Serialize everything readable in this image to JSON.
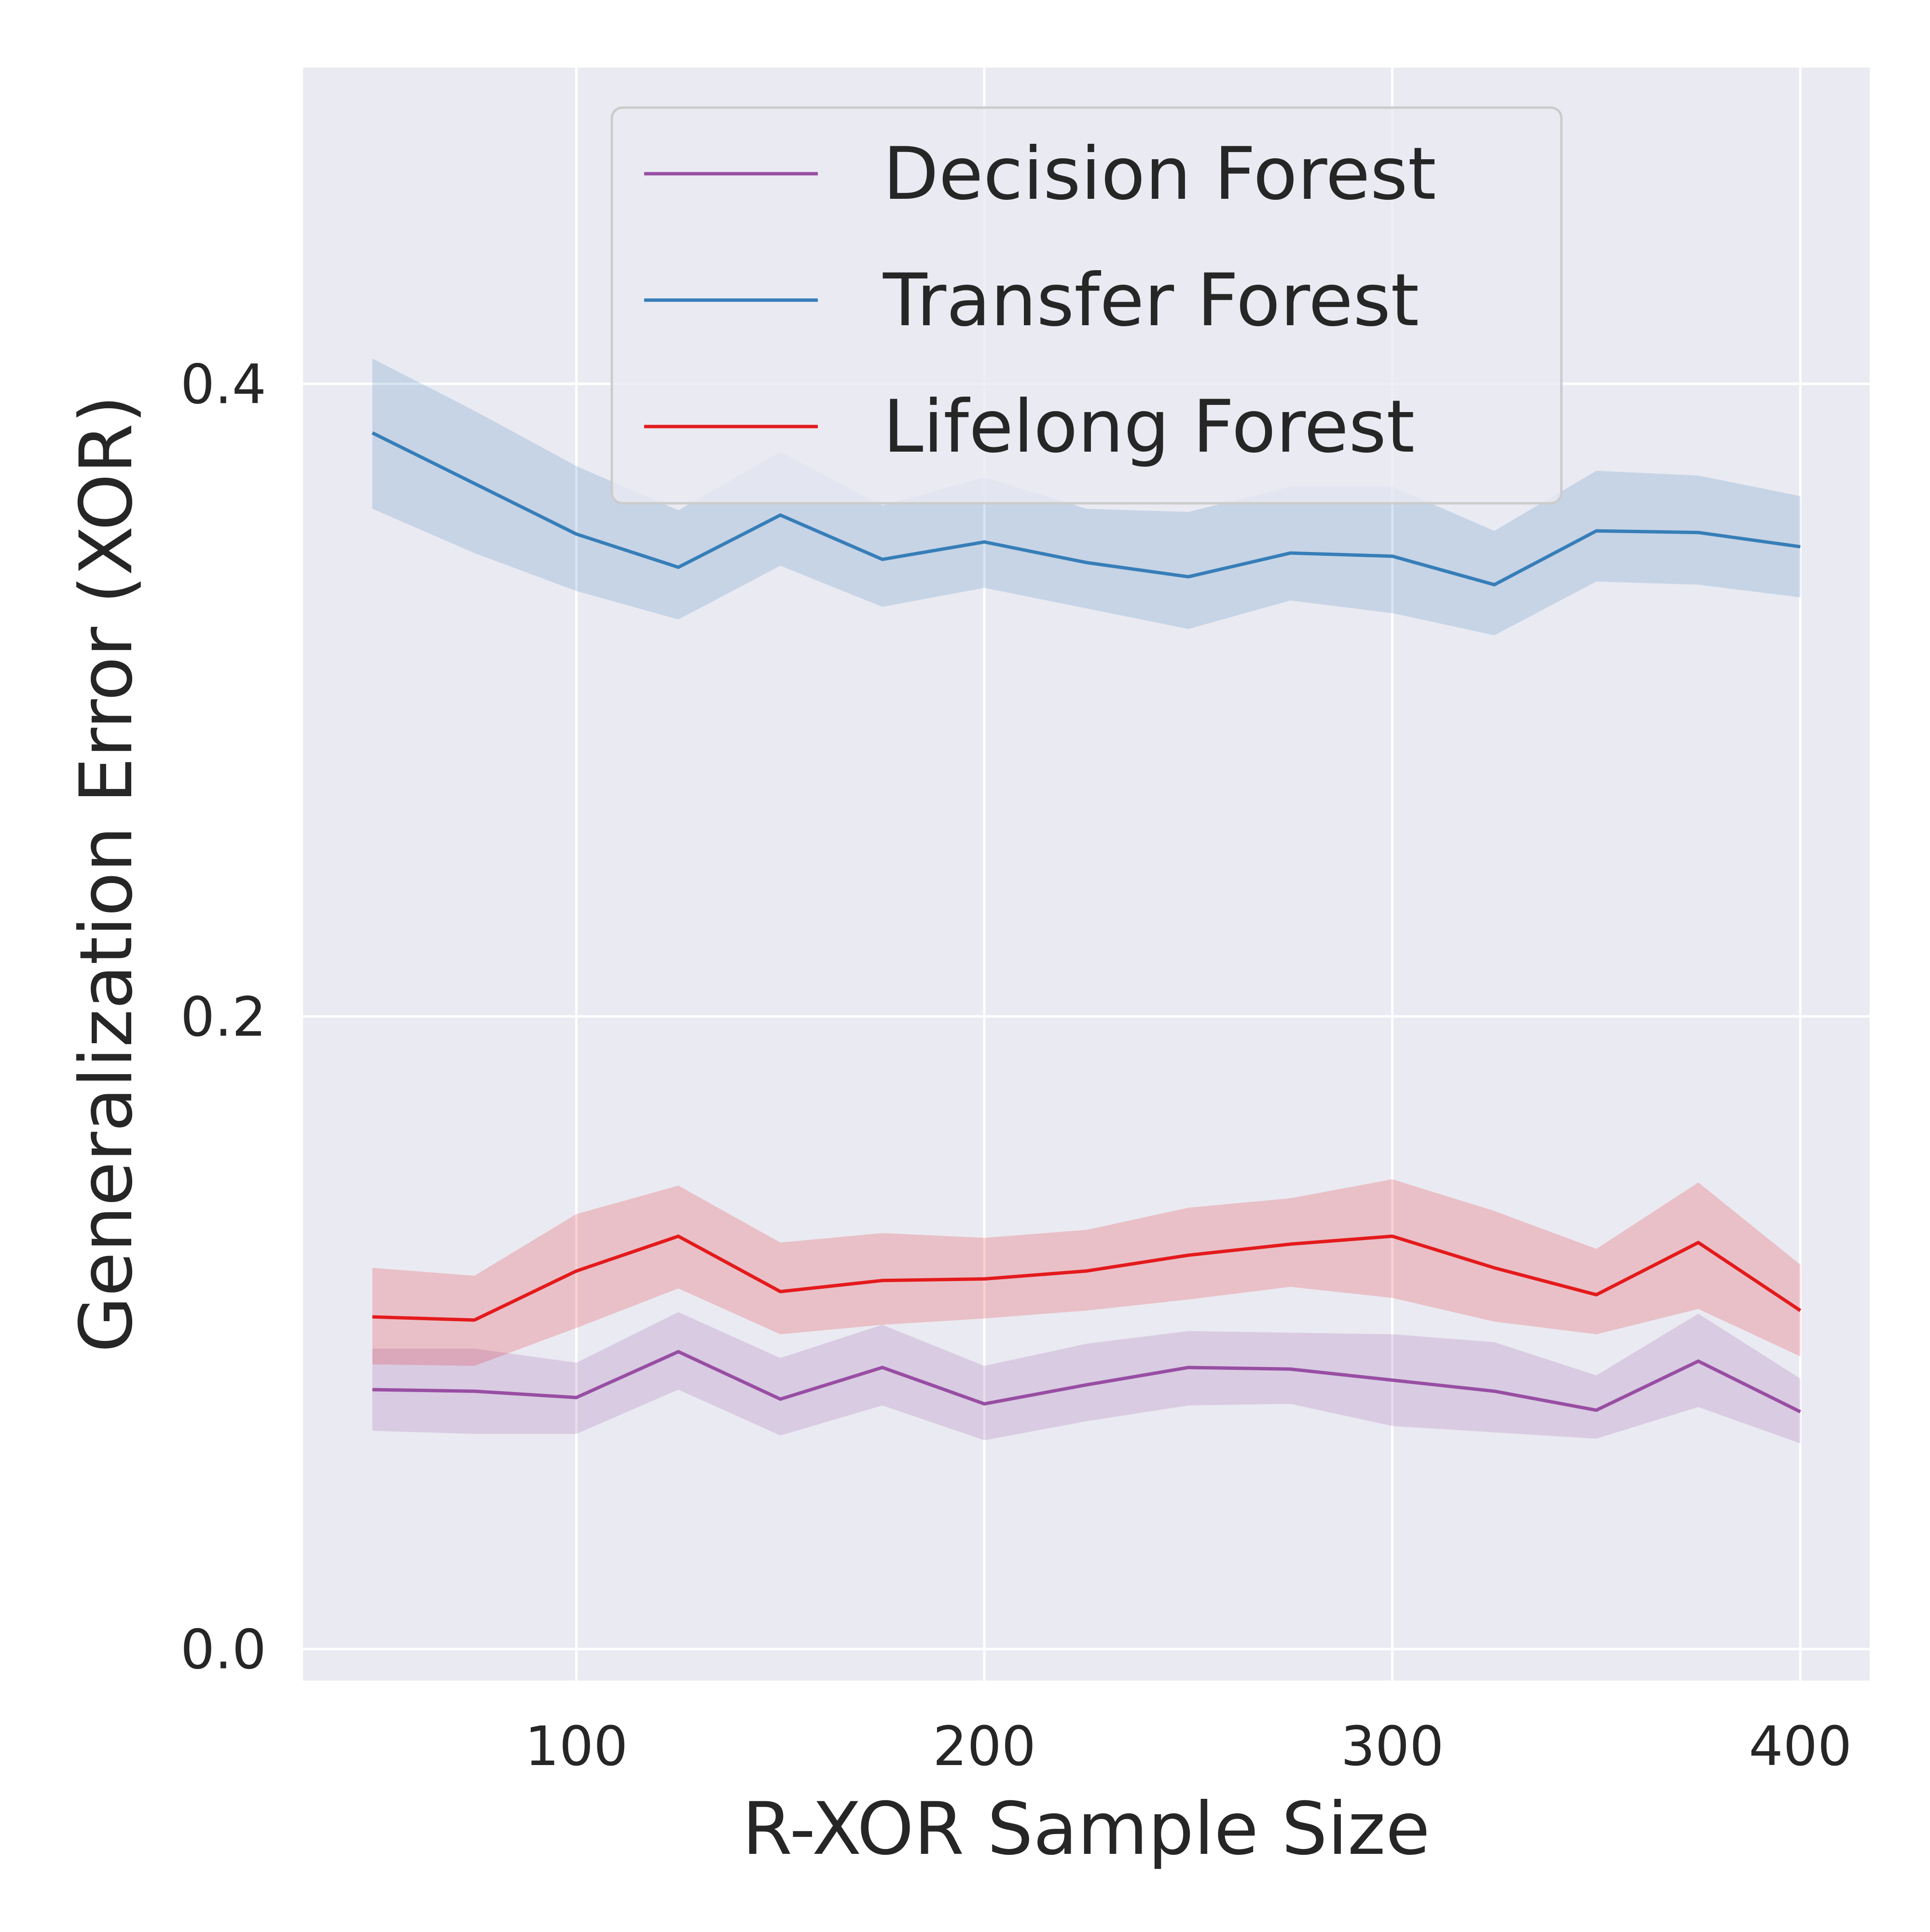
{
  "chart_data": {
    "type": "line",
    "title": "",
    "xlabel": "R-XOR Sample Size",
    "ylabel": "Generalization Error (XOR)",
    "xlim": [
      33,
      417
    ],
    "ylim": [
      -0.01,
      0.5
    ],
    "xticks": [
      100,
      200,
      300,
      400
    ],
    "yticks": [
      0.0,
      0.2,
      0.4
    ],
    "xtick_labels": [
      "100",
      "200",
      "300",
      "400"
    ],
    "ytick_labels": [
      "0.0",
      "0.2",
      "0.4"
    ],
    "grid": true,
    "legend_position": "top-center",
    "background_color": "#eaeaf2",
    "x": [
      50,
      75,
      100,
      125,
      150,
      175,
      200,
      225,
      250,
      275,
      300,
      325,
      350,
      375,
      400
    ],
    "series": [
      {
        "name": "Decision Forest",
        "color": "#984ea3",
        "values": [
          0.082,
          0.0815,
          0.0795,
          0.094,
          0.079,
          0.089,
          0.0775,
          0.0835,
          0.089,
          0.0885,
          0.085,
          0.0815,
          0.0755,
          0.091,
          0.075
        ],
        "lower": [
          0.069,
          0.068,
          0.068,
          0.082,
          0.0675,
          0.077,
          0.066,
          0.072,
          0.077,
          0.0775,
          0.0705,
          0.0685,
          0.0665,
          0.0765,
          0.065
        ],
        "upper": [
          0.095,
          0.095,
          0.0905,
          0.1065,
          0.092,
          0.1025,
          0.0895,
          0.0965,
          0.1005,
          0.1,
          0.0995,
          0.097,
          0.0865,
          0.106,
          0.0855
        ]
      },
      {
        "name": "Transfer Forest",
        "color": "#377eb8",
        "values": [
          0.3845,
          0.3685,
          0.3525,
          0.342,
          0.3585,
          0.3445,
          0.35,
          0.3435,
          0.339,
          0.3465,
          0.3455,
          0.3365,
          0.3535,
          0.353,
          0.3485
        ],
        "lower": [
          0.3605,
          0.3465,
          0.3345,
          0.3255,
          0.3425,
          0.3295,
          0.3355,
          0.329,
          0.3225,
          0.3315,
          0.3275,
          0.3205,
          0.3375,
          0.3365,
          0.3325
        ],
        "upper": [
          0.408,
          0.3915,
          0.374,
          0.36,
          0.3785,
          0.3615,
          0.3705,
          0.3605,
          0.3595,
          0.3675,
          0.3675,
          0.3535,
          0.3725,
          0.371,
          0.3645
        ]
      },
      {
        "name": "Lifelong Forest",
        "color": "#e41a1c",
        "values": [
          0.105,
          0.104,
          0.1195,
          0.1305,
          0.113,
          0.1165,
          0.117,
          0.1195,
          0.1245,
          0.128,
          0.1305,
          0.1205,
          0.112,
          0.1285,
          0.107
        ],
        "lower": [
          0.09,
          0.0895,
          0.1015,
          0.114,
          0.0995,
          0.1025,
          0.1045,
          0.107,
          0.1105,
          0.1145,
          0.111,
          0.1035,
          0.0995,
          0.1075,
          0.0925
        ],
        "upper": [
          0.1205,
          0.118,
          0.1375,
          0.1465,
          0.1285,
          0.1315,
          0.13,
          0.1325,
          0.1395,
          0.1425,
          0.1485,
          0.1385,
          0.1265,
          0.1475,
          0.1215
        ]
      }
    ]
  }
}
